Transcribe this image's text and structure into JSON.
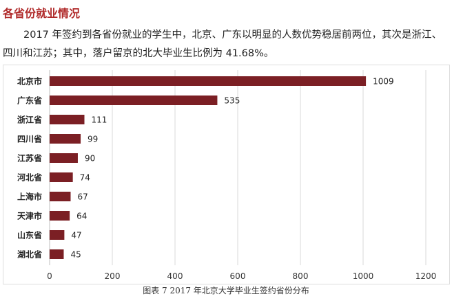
{
  "section": {
    "title": "各省份就业情况",
    "paragraph_line1": "2017 年签约到各省份就业的学生中，北京、广东以明显的人数优势稳居前两位，其次是浙江、",
    "paragraph_line2": "四川和江苏；其中，落户留京的北大毕业生比例为 41.68%。"
  },
  "colors": {
    "bar": "#7b1f24",
    "heading": "#b02a2a",
    "grid": "#d9d9d9"
  },
  "chart_data": {
    "type": "bar",
    "orientation": "horizontal",
    "categories": [
      "北京市",
      "广东省",
      "浙江省",
      "四川省",
      "江苏省",
      "河北省",
      "上海市",
      "天津市",
      "山东省",
      "湖北省"
    ],
    "values": [
      1009,
      535,
      111,
      99,
      90,
      74,
      67,
      64,
      47,
      45
    ],
    "xlim": [
      0,
      1200
    ],
    "xticks": [
      0,
      200,
      400,
      600,
      800,
      1000,
      1200
    ],
    "grid": true,
    "data_labels": true
  },
  "caption": "图表 7 2017 年北京大学毕业生签约省份分布"
}
